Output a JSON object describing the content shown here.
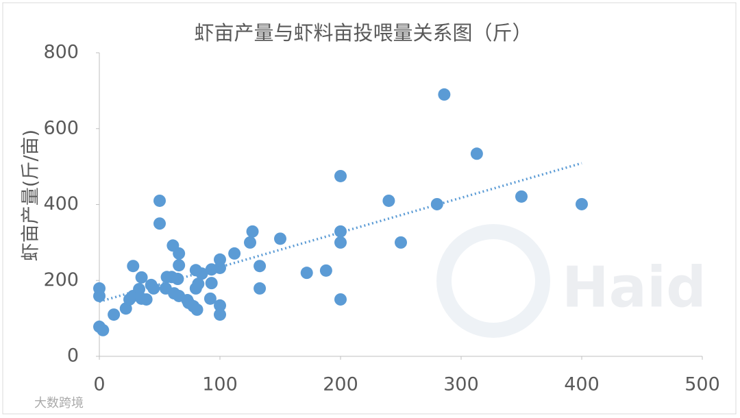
{
  "chart_data": {
    "type": "scatter",
    "title": "虾亩产量与虾料亩投喂量关系图（斤）",
    "y_label": "虾亩产量(斤/亩)",
    "color": "#5b9bd5",
    "x": [
      0,
      0,
      0,
      3,
      12,
      22,
      25,
      28,
      28,
      33,
      35,
      35,
      39,
      43,
      45,
      50,
      50,
      56,
      55,
      61,
      60,
      62,
      65,
      66,
      66,
      66,
      73,
      74,
      78,
      80,
      80,
      82,
      81,
      85,
      93,
      93,
      92,
      100,
      100,
      100,
      100,
      112,
      125,
      127,
      133,
      133,
      150,
      172,
      188,
      200,
      200,
      200,
      200,
      240,
      250,
      280,
      286,
      313,
      350,
      400
    ],
    "y": [
      179,
      159,
      78,
      69,
      110,
      126,
      150,
      238,
      159,
      177,
      208,
      152,
      150,
      188,
      179,
      410,
      350,
      209,
      179,
      292,
      209,
      166,
      204,
      271,
      240,
      159,
      148,
      141,
      132,
      227,
      179,
      191,
      123,
      218,
      229,
      193,
      152,
      255,
      233,
      134,
      110,
      271,
      300,
      329,
      238,
      179,
      310,
      220,
      226,
      475,
      329,
      300,
      150,
      410,
      300,
      401,
      690,
      534,
      421,
      401
    ],
    "trendline": {
      "x": [
        0,
        400
      ],
      "y": [
        144,
        509
      ]
    },
    "xlim": [
      0,
      500
    ],
    "xticks": [
      0,
      100,
      200,
      300,
      400,
      500
    ],
    "ylim": [
      0,
      800
    ],
    "yticks": [
      0,
      200,
      400,
      600,
      800
    ],
    "watermark": "Haid",
    "source_mark": "大数跨境"
  }
}
